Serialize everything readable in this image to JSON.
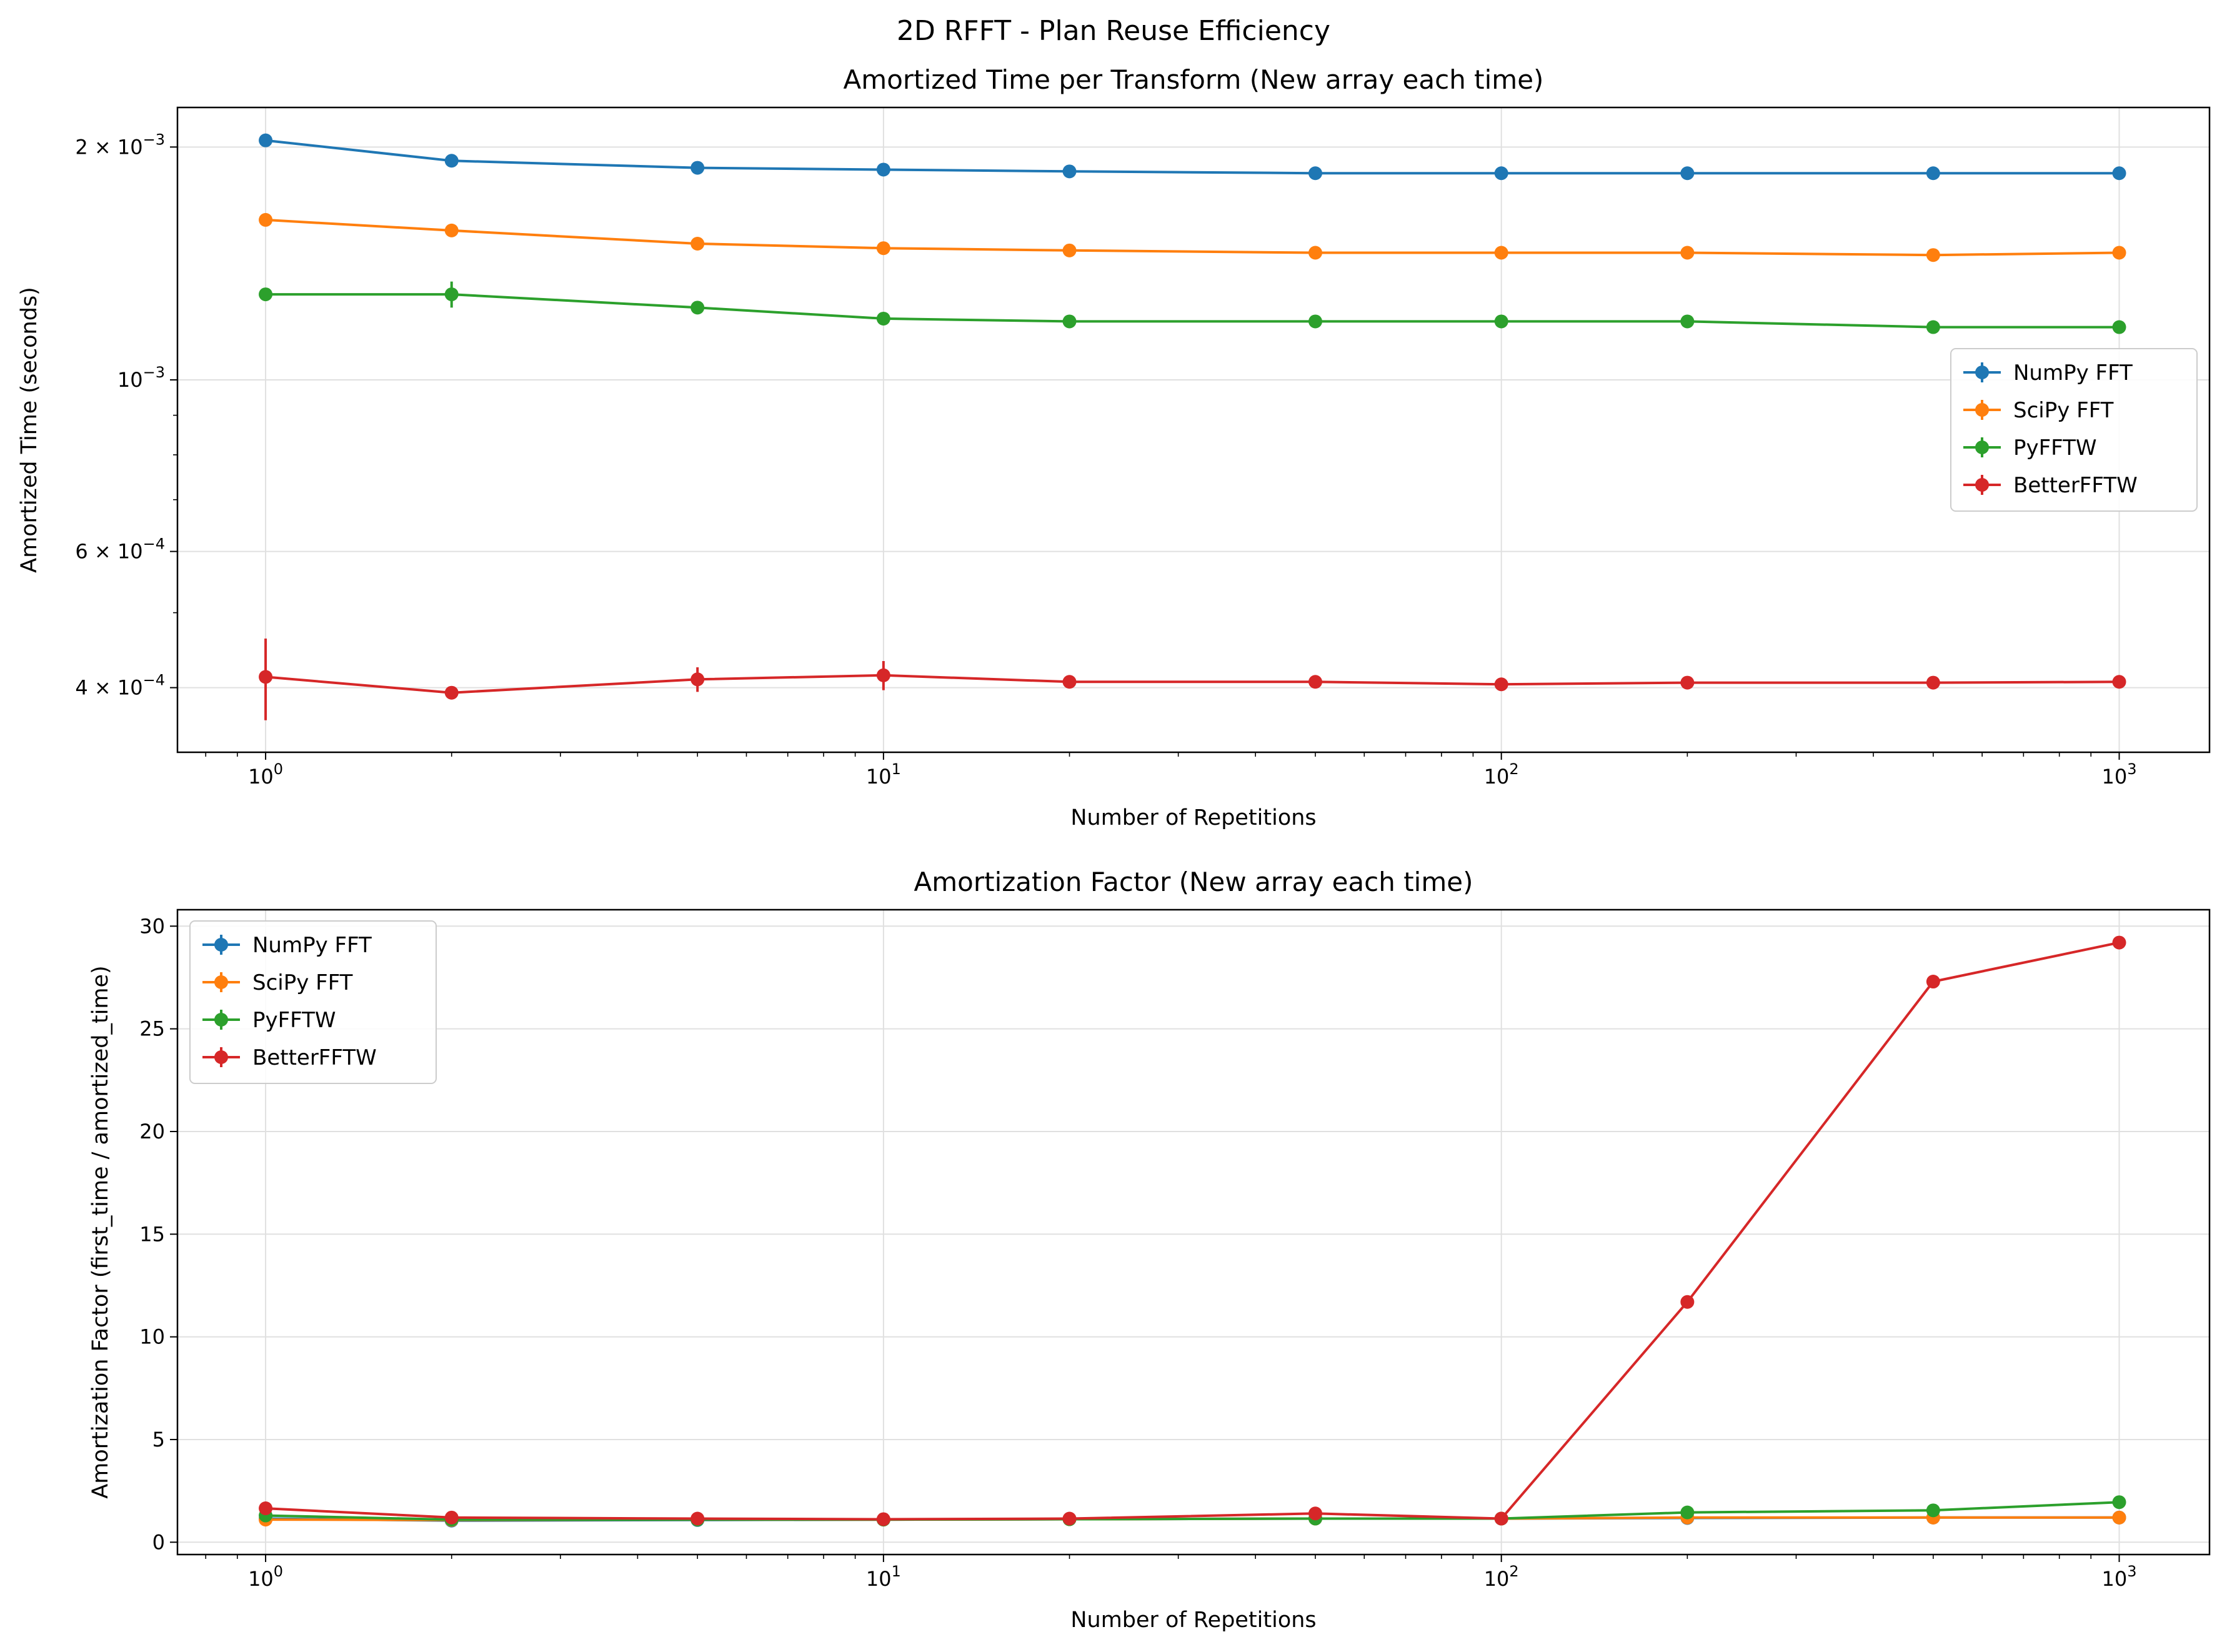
{
  "suptitle": "2D RFFT - Plan Reuse Efficiency",
  "colors": {
    "numpy": "#1f77b4",
    "scipy": "#ff7f0e",
    "pyfftw": "#2ca02c",
    "betterfftw": "#d62728",
    "grid": "#e0e0e0",
    "axes": "#000000"
  },
  "chart_data": [
    {
      "type": "line",
      "title": "Amortized Time per Transform (New array each time)",
      "xlabel": "Number of Repetitions",
      "ylabel": "Amortized Time (seconds)",
      "xscale": "log",
      "yscale": "log",
      "xlim": [
        0.72,
        1400
      ],
      "ylim": [
        0.00033,
        0.00225
      ],
      "grid": true,
      "legend_position": "center-right",
      "x": [
        1,
        2,
        5,
        10,
        20,
        50,
        100,
        200,
        500,
        1000
      ],
      "xticks": [
        {
          "value": 1,
          "base": "10",
          "exp": "0"
        },
        {
          "value": 10,
          "base": "10",
          "exp": "1"
        },
        {
          "value": 100,
          "base": "10",
          "exp": "2"
        },
        {
          "value": 1000,
          "base": "10",
          "exp": "3"
        }
      ],
      "yticks": [
        {
          "value": 0.002,
          "mant": "2 × 10",
          "exp": "−3"
        },
        {
          "value": 0.001,
          "mant": "10",
          "exp": "−3"
        },
        {
          "value": 0.0006,
          "mant": "6 × 10",
          "exp": "−4"
        },
        {
          "value": 0.0004,
          "mant": "4 × 10",
          "exp": "−4"
        }
      ],
      "series": [
        {
          "name": "NumPy FFT",
          "color_key": "numpy",
          "values": [
            0.00204,
            0.00192,
            0.00188,
            0.00187,
            0.00186,
            0.00185,
            0.00185,
            0.00185,
            0.00185,
            0.00185
          ],
          "errors": [
            0,
            0,
            0,
            0,
            0,
            0,
            0,
            0,
            0,
            0
          ]
        },
        {
          "name": "SciPy FFT",
          "color_key": "scipy",
          "values": [
            0.00161,
            0.00156,
            0.0015,
            0.00148,
            0.00147,
            0.00146,
            0.00146,
            0.00146,
            0.00145,
            0.00146
          ],
          "errors": [
            0,
            0,
            0,
            0,
            0,
            0,
            0,
            0,
            0,
            0
          ]
        },
        {
          "name": "PyFFTW",
          "color_key": "pyfftw",
          "values": [
            0.00129,
            0.00129,
            0.00124,
            0.0012,
            0.00119,
            0.00119,
            0.00119,
            0.00119,
            0.00117,
            0.00117
          ],
          "errors": [
            0,
            5e-05,
            0,
            0,
            0,
            0,
            0,
            0,
            0,
            0
          ]
        },
        {
          "name": "BetterFFTW",
          "color_key": "betterfftw",
          "values": [
            0.000413,
            0.000394,
            0.00041,
            0.000415,
            0.000407,
            0.000407,
            0.000404,
            0.000406,
            0.000406,
            0.000407
          ],
          "errors": [
            5e-05,
            0,
            1.5e-05,
            1.8e-05,
            0,
            0,
            0,
            0,
            0,
            0
          ]
        }
      ]
    },
    {
      "type": "line",
      "title": "Amortization Factor (New array each time)",
      "xlabel": "Number of Repetitions",
      "ylabel": "Amortization Factor (first_time / amortized_time)",
      "xscale": "log",
      "yscale": "linear",
      "xlim": [
        0.72,
        1400
      ],
      "ylim": [
        -0.6,
        30.8
      ],
      "grid": true,
      "legend_position": "upper-left",
      "x": [
        1,
        2,
        5,
        10,
        20,
        50,
        100,
        200,
        500,
        1000
      ],
      "xticks": [
        {
          "value": 1,
          "base": "10",
          "exp": "0"
        },
        {
          "value": 10,
          "base": "10",
          "exp": "1"
        },
        {
          "value": 100,
          "base": "10",
          "exp": "2"
        },
        {
          "value": 1000,
          "base": "10",
          "exp": "3"
        }
      ],
      "yticks": [
        {
          "value": 0,
          "label": "0"
        },
        {
          "value": 5,
          "label": "5"
        },
        {
          "value": 10,
          "label": "10"
        },
        {
          "value": 15,
          "label": "15"
        },
        {
          "value": 20,
          "label": "20"
        },
        {
          "value": 25,
          "label": "25"
        },
        {
          "value": 30,
          "label": "30"
        }
      ],
      "series": [
        {
          "name": "NumPy FFT",
          "color_key": "numpy",
          "values": [
            1.15,
            1.05,
            1.08,
            1.1,
            1.12,
            1.15,
            1.15,
            1.18,
            1.2,
            1.2
          ]
        },
        {
          "name": "SciPy FFT",
          "color_key": "scipy",
          "values": [
            1.1,
            1.08,
            1.1,
            1.1,
            1.12,
            1.15,
            1.15,
            1.2,
            1.2,
            1.2
          ]
        },
        {
          "name": "PyFFTW",
          "color_key": "pyfftw",
          "values": [
            1.3,
            1.1,
            1.1,
            1.1,
            1.12,
            1.15,
            1.15,
            1.45,
            1.55,
            1.95
          ]
        },
        {
          "name": "BetterFFTW",
          "color_key": "betterfftw",
          "values": [
            1.65,
            1.2,
            1.15,
            1.12,
            1.15,
            1.4,
            1.15,
            11.7,
            27.3,
            29.2
          ]
        }
      ]
    }
  ]
}
